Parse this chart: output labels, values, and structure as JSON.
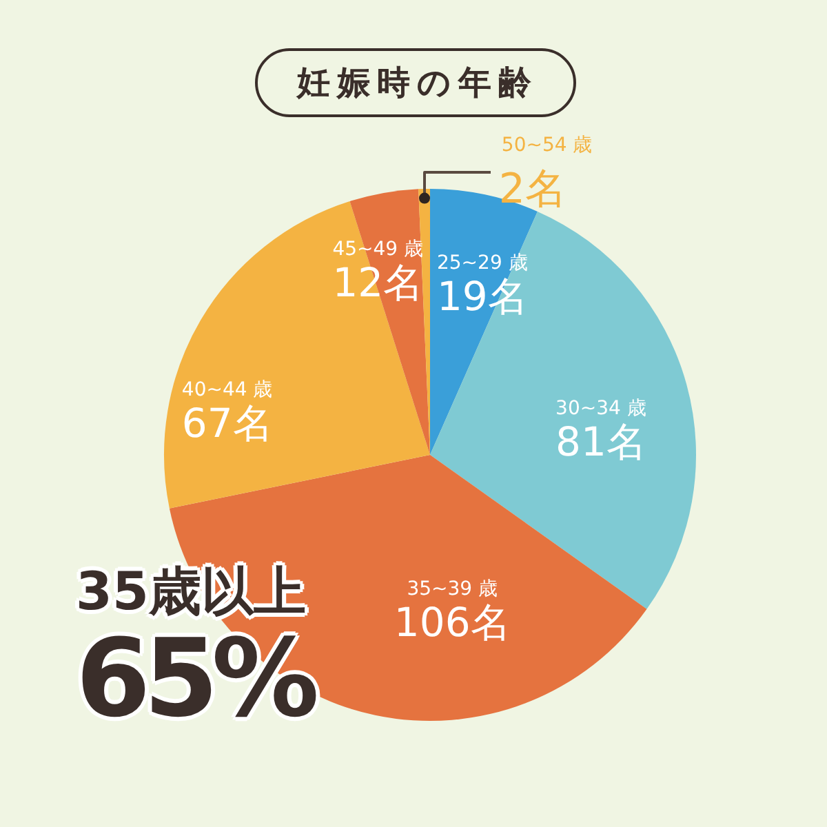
{
  "chart_data": {
    "type": "pie",
    "title": "妊娠時の年齢",
    "categories": [
      "25~29 歳",
      "30~34 歳",
      "35~39 歳",
      "40~44 歳",
      "45~49 歳",
      "50~54 歳"
    ],
    "values": [
      19,
      81,
      106,
      67,
      12,
      2
    ],
    "colors": [
      "#3a9fd9",
      "#7fcad3",
      "#e5733f",
      "#f4b342",
      "#e5733f",
      "#f4b342"
    ],
    "value_labels": [
      "19名",
      "81名",
      "106名",
      "67名",
      "12名",
      "2名"
    ],
    "annotations": [
      "35歳以上",
      "65%"
    ]
  }
}
